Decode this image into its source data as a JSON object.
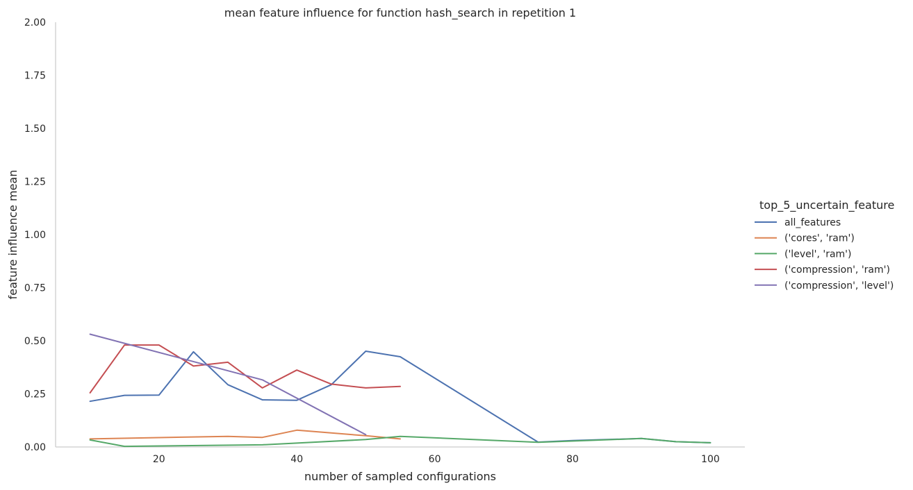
{
  "chart_data": {
    "type": "line",
    "title": "mean feature influence for function hash_search in repetition 1",
    "xlabel": "number of sampled configurations",
    "ylabel": "feature influence mean",
    "xlim": [
      5,
      105
    ],
    "ylim": [
      0,
      2.0
    ],
    "x_ticks": [
      20,
      40,
      60,
      80,
      100
    ],
    "y_ticks": [
      "0.00",
      "0.25",
      "0.50",
      "0.75",
      "1.00",
      "1.25",
      "1.50",
      "1.75",
      "2.00"
    ],
    "grid": false,
    "legend_title": "top_5_uncertain_feature",
    "legend_position": "right",
    "series": [
      {
        "name": "all_features",
        "color": "#4c72b0",
        "points": [
          [
            10,
            0.215
          ],
          [
            15,
            0.243
          ],
          [
            20,
            0.244
          ],
          [
            25,
            0.448
          ],
          [
            30,
            0.293
          ],
          [
            35,
            0.222
          ],
          [
            40,
            0.22
          ],
          [
            45,
            0.293
          ],
          [
            50,
            0.451
          ],
          [
            55,
            0.425
          ],
          [
            75,
            0.023
          ],
          [
            80,
            0.03
          ],
          [
            90,
            0.04
          ],
          [
            95,
            0.025
          ],
          [
            100,
            0.02
          ]
        ]
      },
      {
        "name": "('cores', 'ram')",
        "color": "#dd8452",
        "points": [
          [
            10,
            0.038
          ],
          [
            20,
            0.044
          ],
          [
            30,
            0.05
          ],
          [
            35,
            0.045
          ],
          [
            40,
            0.079
          ],
          [
            50,
            0.053
          ],
          [
            55,
            0.038
          ]
        ]
      },
      {
        "name": "('level', 'ram')",
        "color": "#55a868",
        "points": [
          [
            10,
            0.033
          ],
          [
            15,
            0.003
          ],
          [
            35,
            0.01
          ],
          [
            50,
            0.035
          ],
          [
            55,
            0.05
          ],
          [
            75,
            0.022
          ],
          [
            90,
            0.04
          ],
          [
            95,
            0.025
          ],
          [
            100,
            0.02
          ]
        ]
      },
      {
        "name": "('compression', 'ram')",
        "color": "#c44e52",
        "points": [
          [
            10,
            0.255
          ],
          [
            15,
            0.48
          ],
          [
            20,
            0.48
          ],
          [
            25,
            0.381
          ],
          [
            30,
            0.399
          ],
          [
            35,
            0.278
          ],
          [
            40,
            0.362
          ],
          [
            45,
            0.296
          ],
          [
            50,
            0.278
          ],
          [
            55,
            0.285
          ]
        ]
      },
      {
        "name": "('compression', 'level')",
        "color": "#8172b3",
        "points": [
          [
            10,
            0.531
          ],
          [
            35,
            0.316
          ],
          [
            50,
            0.058
          ]
        ]
      }
    ]
  }
}
